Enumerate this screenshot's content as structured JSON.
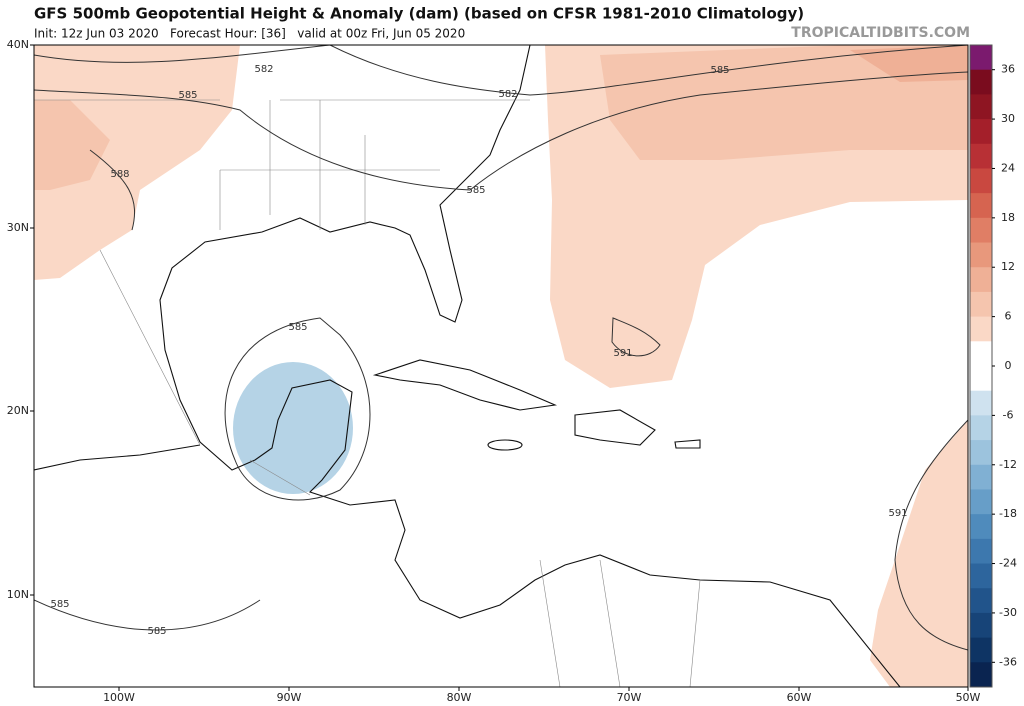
{
  "header": {
    "title": "GFS 500mb Geopotential Height & Anomaly (dam) (based on CFSR 1981-2010 Climatology)",
    "subtitle": "Init: 12z Jun 03 2020   Forecast Hour: [36]   valid at 00z Fri, Jun 05 2020",
    "watermark": "TROPICALTIDBITS.COM"
  },
  "map": {
    "lat_labels": [
      "40N",
      "30N",
      "20N",
      "10N"
    ],
    "lon_labels": [
      "100W",
      "90W",
      "80W",
      "70W",
      "60W",
      "50W"
    ],
    "contour_labels": [
      582,
      585,
      582,
      585,
      588,
      585,
      585,
      591,
      591,
      585,
      585
    ]
  },
  "colorbar": {
    "lim": [
      -39,
      39
    ],
    "ticks": [
      36,
      30,
      24,
      18,
      12,
      6,
      0,
      -6,
      -12,
      -18,
      -24,
      -30,
      -36
    ],
    "colors": [
      "#7b1a6e",
      "#7a0c1e",
      "#8e1522",
      "#a41f2a",
      "#b83035",
      "#c94840",
      "#d66450",
      "#e07e65",
      "#e8987c",
      "#efb096",
      "#f5c5ae",
      "#fad8c6",
      "#ffffff",
      "#ffffff",
      "#cfe2ef",
      "#b5d3e6",
      "#9cc3dd",
      "#80b0d3",
      "#679ec8",
      "#4f8bbc",
      "#3d78ae",
      "#2d659d",
      "#21548b",
      "#174478",
      "#0e3464",
      "#0a2450"
    ]
  }
}
